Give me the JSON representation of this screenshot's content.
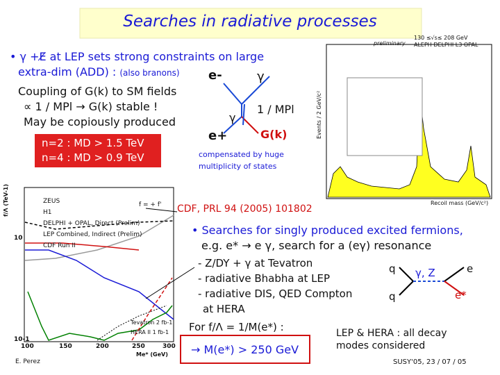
{
  "title": "Searches in radiative processes",
  "intro": {
    "line1": "• γ +E̸ at LEP sets strong constraints on large",
    "line2": "extra-dim (ADD) :",
    "note": "(also branons)"
  },
  "coupling": [
    "Coupling of G(k) to SM fields",
    "∝ 1 / MPl → G(k) stable !",
    "May be copiously produced"
  ],
  "limits": [
    "n=2 : MD > 1.5 TeV",
    "n=4 : MD > 0.9 TeV"
  ],
  "feynman": {
    "e_minus": "e-",
    "gamma_out": "γ",
    "gamma_in": "γ",
    "e_plus": "e+",
    "graviton": "G(k)",
    "coupling": "1 / MPl"
  },
  "compensated": [
    "compensated by huge",
    "multiplicity of states"
  ],
  "recoil_plot": {
    "energy": "130 ≤√s≤ 208 GeV",
    "experiments": "ALEPH DELPHI L3 OPAL",
    "status": "preliminary",
    "xlabel": "Recoil mass (GeV/c²)",
    "ylabel": "Events / 2 GeV/c²"
  },
  "limit_plot": {
    "legend": [
      "ZEUS",
      "H1",
      "DELPHI + OPAL, Direct (Prelim)",
      "LEP Combined, Indirect (Prelim)",
      "CDF Run II"
    ],
    "assumption": "f = + f'",
    "tevatron": "Tevatron 2 fb-1",
    "hera": "HERA II 1 fb-1",
    "yticks": [
      "10",
      "10-1"
    ],
    "xticks": [
      "100",
      "150",
      "200",
      "250",
      "300"
    ],
    "xlabel": "Me* (GeV)",
    "ylabel": "f/Λ (TeV-1)"
  },
  "reference": "CDF, PRL 94 (2005) 101802",
  "excited": [
    "• Searches for singly produced excited fermions,",
    "e.g. e* → e γ, search for a (eγ) resonance"
  ],
  "channels": [
    "- Z/DY + γ at Tevatron",
    "- radiative Bhabha at LEP",
    "- radiative DIS, QED Compton",
    "at HERA"
  ],
  "feynman2": {
    "q_in": "q",
    "q_out": "q",
    "boson": "γ, Z",
    "e": "e",
    "estar": "e*"
  },
  "result": "For f/Λ = 1/M(e*) :",
  "bound": "→ M(e*) > 250 GeV",
  "decay": [
    "LEP & HERA : all decay",
    "modes considered"
  ],
  "footer": {
    "author": "E. Perez",
    "conference": "SUSY'05, 23 / 07 / 05"
  }
}
